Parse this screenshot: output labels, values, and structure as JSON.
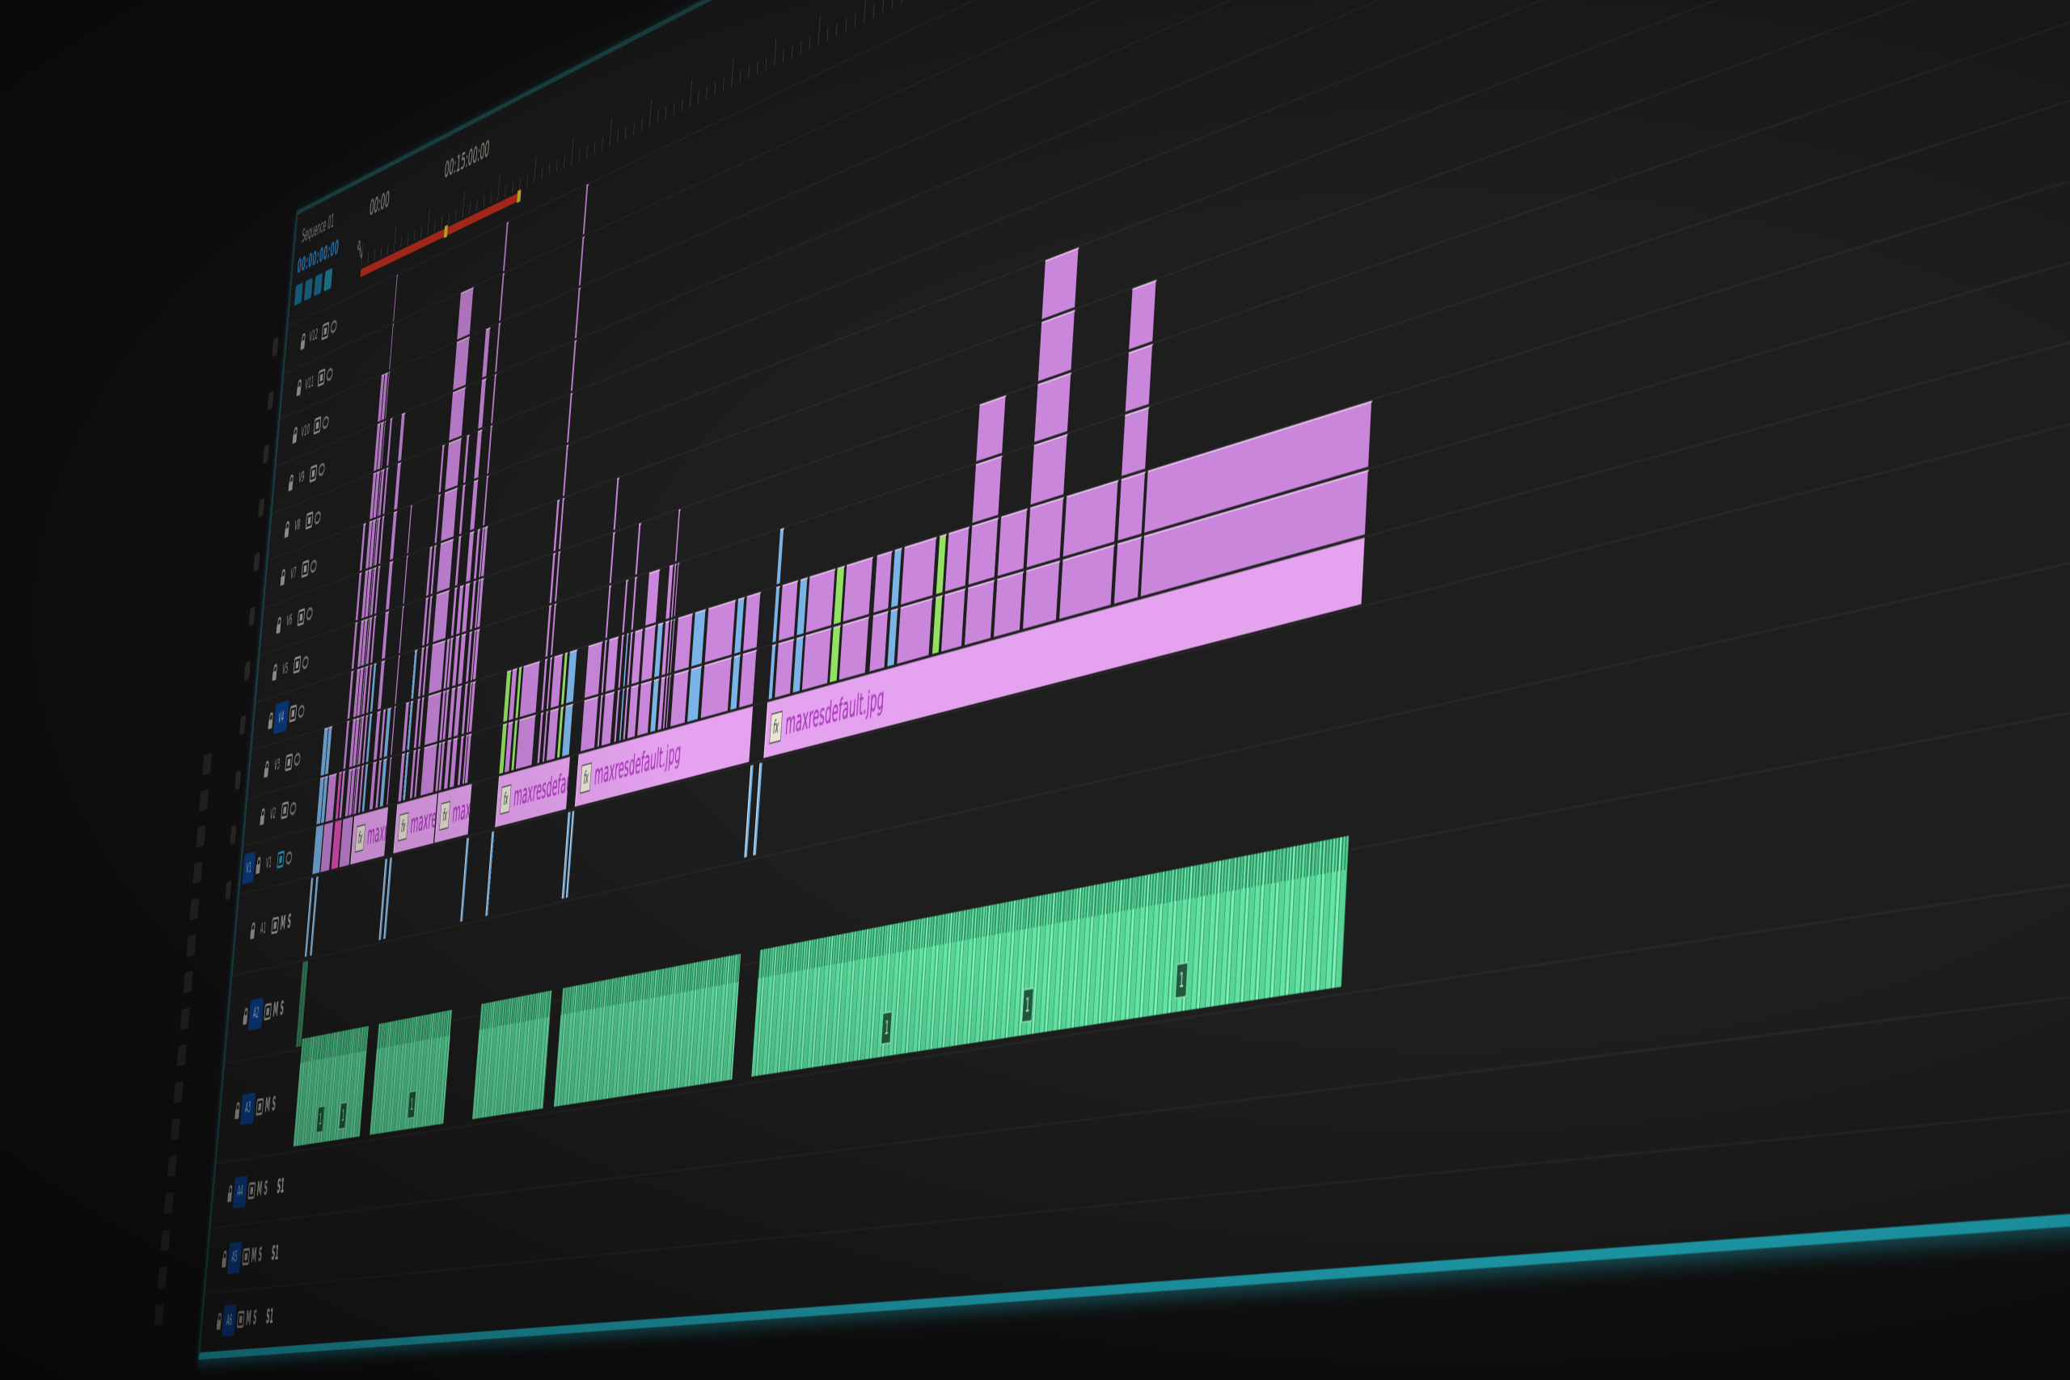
{
  "sequence": {
    "tab_title": "Sequence 01",
    "timecode": "00:00:00:00"
  },
  "ruler": {
    "labels": [
      {
        "time_min": 0,
        "text": "00:00"
      },
      {
        "time_min": 15,
        "text": "00:15:00:00"
      }
    ],
    "render_bar": {
      "start_min": 0,
      "end_min": 23,
      "color": "#c8301f",
      "markers_min": [
        12.7,
        23
      ]
    }
  },
  "video_tracks": [
    {
      "label": "V12"
    },
    {
      "label": "V11"
    },
    {
      "label": "V10"
    },
    {
      "label": "V9"
    },
    {
      "label": "V8"
    },
    {
      "label": "V7"
    },
    {
      "label": "V6"
    },
    {
      "label": "V5"
    },
    {
      "label": "V4",
      "targeted": true
    },
    {
      "label": "V3"
    },
    {
      "label": "V2"
    },
    {
      "label": "V1",
      "source_patch": "V1",
      "output_on": true
    }
  ],
  "audio_tracks": [
    {
      "label": "A1",
      "mute": "M",
      "solo": "S"
    },
    {
      "label": "A2",
      "targeted": true,
      "mute": "M",
      "solo": "S"
    },
    {
      "label": "A3",
      "targeted": true,
      "mute": "M",
      "solo": "S"
    },
    {
      "label": "A4",
      "targeted": true,
      "mute": "M",
      "solo": "S",
      "extra": "S1"
    },
    {
      "label": "A5",
      "targeted": true,
      "mute": "M",
      "solo": "S",
      "extra": "S1"
    },
    {
      "label": "A6",
      "targeted": true,
      "mute": "M",
      "solo": "S",
      "extra": "S1"
    }
  ],
  "colors": {
    "clip": "#c986db",
    "blue": "#7ab4e6",
    "green": "#93e063",
    "pink": "#e04fb8",
    "label_bar": "#e5a3ef",
    "audio": "#63e3a4",
    "accent": "#22b2c3"
  },
  "clips": {
    "v1": [
      {
        "start": 0.3,
        "end": 1.5,
        "color": "blue"
      },
      {
        "start": 1.6,
        "end": 3.0,
        "color": "clip"
      },
      {
        "start": 3.2,
        "end": 4.3,
        "color": "pink"
      },
      {
        "start": 4.4,
        "end": 6.0,
        "color": "clip"
      },
      {
        "start": 6.1,
        "end": 11.2,
        "name": "maxresdefault.jpg",
        "fx": "fx"
      },
      {
        "start": 12.4,
        "end": 18.2,
        "name": "maxresdefault.jpg",
        "fx": "fx"
      },
      {
        "start": 18.3,
        "end": 23.0,
        "name": "maxresdefault.jpg",
        "fx": "fx"
      },
      {
        "start": 26.6,
        "end": 36.0,
        "name": "maxresdefault.jpg",
        "fx": "fx"
      },
      {
        "start": 37.0,
        "end": 57.9,
        "name": "maxresdefault.jpg",
        "fx": "fx"
      },
      {
        "start": 59.4,
        "end": 115,
        "name": "maxresdefault.jpg",
        "fx": "fx"
      }
    ],
    "stacks": [
      [
        0.3,
        1.0,
        3,
        "blue"
      ],
      [
        1.0,
        1.6,
        3,
        "blue"
      ],
      [
        1.7,
        2.9,
        2,
        "clip"
      ],
      [
        3.2,
        3.7,
        2,
        "pink"
      ],
      [
        3.8,
        4.2,
        7,
        "clip"
      ],
      [
        4.7,
        5.2,
        10,
        "clip"
      ],
      [
        5.2,
        5.7,
        10,
        "clip"
      ],
      [
        5.8,
        6.0,
        12,
        "clip"
      ],
      [
        6.0,
        6.4,
        8,
        "clip"
      ],
      [
        6.6,
        7.0,
        9,
        "clip"
      ],
      [
        7.2,
        7.6,
        4,
        "blue"
      ],
      [
        8.3,
        8.9,
        9,
        "clip"
      ],
      [
        9.2,
        9.6,
        3,
        "clip"
      ],
      [
        9.8,
        10.4,
        3,
        "blue"
      ],
      [
        10.8,
        11.1,
        7,
        "clip"
      ],
      [
        12.5,
        13.0,
        3,
        "clip"
      ],
      [
        13.2,
        13.6,
        4,
        "blue"
      ],
      [
        14.2,
        14.6,
        6,
        "clip"
      ],
      [
        14.8,
        15.2,
        8,
        "clip"
      ],
      [
        15.7,
        17.6,
        11,
        "clip"
      ],
      [
        17.8,
        18.2,
        4,
        "clip"
      ],
      [
        18.3,
        18.7,
        8,
        "clip"
      ],
      [
        19.0,
        19.6,
        5,
        "clip"
      ],
      [
        19.8,
        20.5,
        10,
        "clip"
      ],
      [
        20.9,
        21.3,
        6,
        "clip"
      ],
      [
        21.6,
        21.9,
        12,
        "clip"
      ],
      [
        21.9,
        22.4,
        6,
        "clip"
      ],
      [
        26.6,
        27.2,
        3,
        "green"
      ],
      [
        27.3,
        28.0,
        3,
        "clip"
      ],
      [
        28.2,
        28.6,
        3,
        "green"
      ],
      [
        28.8,
        31.0,
        3,
        "clip"
      ],
      [
        31.6,
        32.0,
        6,
        "clip"
      ],
      [
        32.3,
        32.6,
        12,
        "clip"
      ],
      [
        32.8,
        34.0,
        3,
        "clip"
      ],
      [
        34.2,
        34.6,
        3,
        "green"
      ],
      [
        34.8,
        35.8,
        3,
        "blue"
      ],
      [
        37.2,
        39.0,
        3,
        "clip"
      ],
      [
        39.3,
        39.6,
        6,
        "clip"
      ],
      [
        39.8,
        41.0,
        3,
        "clip"
      ],
      [
        41.4,
        41.7,
        4,
        "clip"
      ],
      [
        42.0,
        42.3,
        3,
        "blue"
      ],
      [
        42.5,
        42.8,
        5,
        "clip"
      ],
      [
        43.0,
        44.0,
        3,
        "clip"
      ],
      [
        44.2,
        45.6,
        4,
        "clip"
      ],
      [
        45.8,
        46.5,
        3,
        "blue"
      ],
      [
        46.7,
        47.2,
        4,
        "clip"
      ],
      [
        47.3,
        47.6,
        5,
        "clip"
      ],
      [
        47.7,
        47.9,
        4,
        "clip"
      ],
      [
        48.2,
        50.0,
        3,
        "clip"
      ],
      [
        50.2,
        51.5,
        3,
        "blue"
      ],
      [
        51.8,
        55.0,
        3,
        "clip"
      ],
      [
        55.2,
        56.0,
        3,
        "blue"
      ],
      [
        56.2,
        57.8,
        3,
        "clip"
      ],
      [
        59.5,
        60.0,
        4,
        "blue"
      ],
      [
        60.2,
        62.0,
        3,
        "clip"
      ],
      [
        62.2,
        63.0,
        3,
        "blue"
      ],
      [
        63.2,
        66.0,
        3,
        "clip"
      ],
      [
        66.2,
        67.0,
        3,
        "green"
      ],
      [
        67.2,
        70.0,
        3,
        "clip"
      ],
      [
        70.4,
        72.0,
        3,
        "clip"
      ],
      [
        72.2,
        73.0,
        3,
        "blue"
      ],
      [
        73.2,
        76.5,
        3,
        "clip"
      ],
      [
        76.8,
        77.5,
        3,
        "green"
      ],
      [
        77.7,
        79.8,
        3,
        "clip"
      ],
      [
        80.0,
        82.6,
        5,
        "clip"
      ],
      [
        82.8,
        85.4,
        3,
        "clip"
      ],
      [
        85.6,
        88.8,
        7,
        "clip"
      ],
      [
        89.0,
        93.8,
        3,
        "clip"
      ],
      [
        94.0,
        96.2,
        6,
        "clip"
      ],
      [
        96.4,
        115,
        3,
        "clip"
      ]
    ],
    "a1": [
      [
        0.2,
        0.5
      ],
      [
        1.0,
        1.3
      ],
      [
        11.3,
        11.6
      ],
      [
        12.0,
        12.3
      ],
      [
        22.8,
        23.1
      ],
      [
        26.2,
        26.5
      ],
      [
        36.2,
        36.5
      ],
      [
        36.7,
        37.0
      ],
      [
        58.0,
        58.3
      ],
      [
        59.0,
        59.3
      ]
    ],
    "a2": [
      [
        0.0,
        1.0
      ]
    ],
    "a3": [
      {
        "start": 0.9,
        "end": 11.0,
        "badges": [
          "1",
          "1"
        ]
      },
      {
        "start": 12.3,
        "end": 22.8,
        "badges": [
          "1"
        ]
      },
      {
        "start": 26.6,
        "end": 36.0,
        "badges": []
      },
      {
        "start": 37.2,
        "end": 58.5,
        "badges": []
      },
      {
        "start": 60.5,
        "end": 115,
        "badges": [
          "1",
          "1",
          "1"
        ]
      }
    ]
  }
}
